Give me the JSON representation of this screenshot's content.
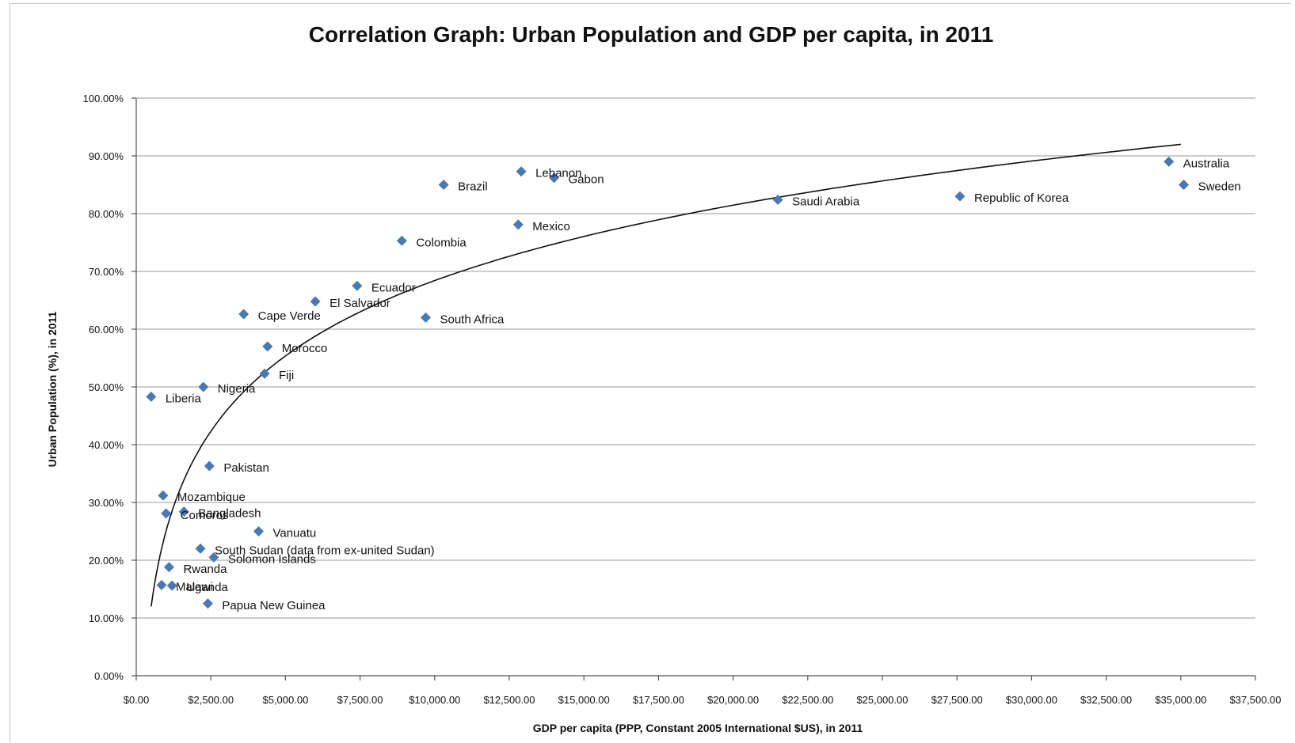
{
  "chart_data": {
    "type": "scatter",
    "title": "Correlation Graph: Urban Population and GDP per capita, in 2011",
    "xlabel": "GDP per capita (PPP, Constant 2005 International $US), in 2011",
    "ylabel": "Urban Population (%), in 2011",
    "xlim": [
      0,
      37500
    ],
    "ylim": [
      0,
      100
    ],
    "x_ticks": [
      0,
      2500,
      5000,
      7500,
      10000,
      12500,
      15000,
      17500,
      20000,
      22500,
      25000,
      27500,
      30000,
      32500,
      35000,
      37500
    ],
    "x_tick_labels": [
      "$0.00",
      "$2,500.00",
      "$5,000.00",
      "$7,500.00",
      "$10,000.00",
      "$12,500.00",
      "$15,000.00",
      "$17,500.00",
      "$20,000.00",
      "$22,500.00",
      "$25,000.00",
      "$27,500.00",
      "$30,000.00",
      "$32,500.00",
      "$35,000.00",
      "$37,500.00"
    ],
    "y_ticks": [
      0,
      10,
      20,
      30,
      40,
      50,
      60,
      70,
      80,
      90,
      100
    ],
    "y_tick_labels": [
      "0.00%",
      "10.00%",
      "20.00%",
      "30.00%",
      "40.00%",
      "50.00%",
      "60.00%",
      "70.00%",
      "80.00%",
      "90.00%",
      "100.00%"
    ],
    "grid": "horizontal",
    "marker_color": "#4a78b0",
    "trendline": {
      "type": "logarithmic",
      "x_range": [
        500,
        35000
      ],
      "y_at_start": 12,
      "y_at_end": 92
    },
    "points": [
      {
        "label": "Liberia",
        "x": 500,
        "y": 48.3
      },
      {
        "label": "Nigeria",
        "x": 2250,
        "y": 50.0
      },
      {
        "label": "Cape Verde",
        "x": 3600,
        "y": 62.6
      },
      {
        "label": "El Salvador",
        "x": 6000,
        "y": 64.8
      },
      {
        "label": "Ecuador",
        "x": 7400,
        "y": 67.5
      },
      {
        "label": "Morocco",
        "x": 4400,
        "y": 57.0
      },
      {
        "label": "Fiji",
        "x": 4300,
        "y": 52.3
      },
      {
        "label": "Brazil",
        "x": 10300,
        "y": 85.0
      },
      {
        "label": "Colombia",
        "x": 8900,
        "y": 75.3
      },
      {
        "label": "South Africa",
        "x": 9700,
        "y": 62.0
      },
      {
        "label": "Lebanon",
        "x": 12900,
        "y": 87.3
      },
      {
        "label": "Gabon",
        "x": 14000,
        "y": 86.2
      },
      {
        "label": "Mexico",
        "x": 12800,
        "y": 78.1
      },
      {
        "label": "Saudi Arabia",
        "x": 21500,
        "y": 82.4
      },
      {
        "label": "Republic of Korea",
        "x": 27600,
        "y": 83.0
      },
      {
        "label": "Australia",
        "x": 34600,
        "y": 89.0
      },
      {
        "label": "Sweden",
        "x": 35100,
        "y": 85.0
      },
      {
        "label": "Pakistan",
        "x": 2450,
        "y": 36.3
      },
      {
        "label": "Mozambique",
        "x": 900,
        "y": 31.2
      },
      {
        "label": "Bangladesh",
        "x": 1600,
        "y": 28.4
      },
      {
        "label": "Comoros",
        "x": 1000,
        "y": 28.1
      },
      {
        "label": "Vanuatu",
        "x": 4100,
        "y": 25.0
      },
      {
        "label": "South Sudan (data from ex-united Sudan)",
        "x": 2150,
        "y": 22.0
      },
      {
        "label": "Solomon Islands",
        "x": 2600,
        "y": 20.5
      },
      {
        "label": "Rwanda",
        "x": 1100,
        "y": 18.8
      },
      {
        "label": "Uganda",
        "x": 1200,
        "y": 15.6
      },
      {
        "label": "Malawi",
        "x": 850,
        "y": 15.7
      },
      {
        "label": "Papua New Guinea",
        "x": 2400,
        "y": 12.5
      }
    ]
  }
}
